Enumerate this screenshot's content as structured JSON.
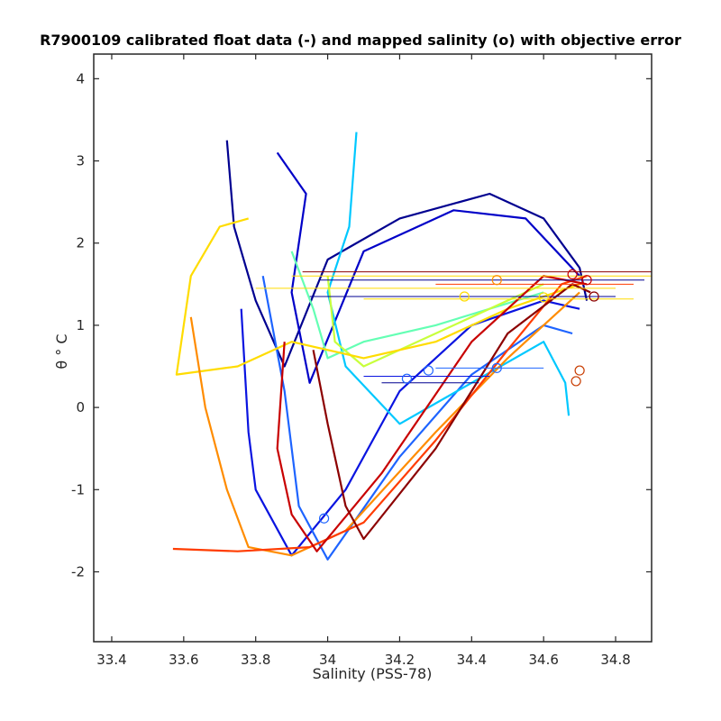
{
  "chart_data": {
    "type": "line",
    "title": "R7900109 calibrated float data (-) and mapped salinity (o) with objective error",
    "xlabel": "Salinity (PSS-78)",
    "ylabel": "θ ° C",
    "xlim": [
      33.35,
      34.9
    ],
    "ylim": [
      -2.85,
      4.3
    ],
    "xticks": [
      33.4,
      33.6,
      33.8,
      34.0,
      34.2,
      34.4,
      34.6,
      34.8
    ],
    "xtick_labels": [
      "33.4",
      "33.6",
      "33.8",
      "34",
      "34.2",
      "34.4",
      "34.6",
      "34.8"
    ],
    "yticks": [
      -2,
      -1,
      0,
      1,
      2,
      3,
      4
    ],
    "ytick_labels": [
      "-2",
      "-1",
      "0",
      "1",
      "2",
      "3",
      "4"
    ],
    "grid": false,
    "series": [
      {
        "color": "#000090",
        "values": [
          {
            "x": 33.72,
            "y": 3.25
          },
          {
            "x": 33.74,
            "y": 2.2
          },
          {
            "x": 33.8,
            "y": 1.3
          },
          {
            "x": 33.88,
            "y": 0.5
          },
          {
            "x": 34.0,
            "y": 1.8
          },
          {
            "x": 34.2,
            "y": 2.3
          },
          {
            "x": 34.45,
            "y": 2.6
          },
          {
            "x": 34.6,
            "y": 2.3
          },
          {
            "x": 34.7,
            "y": 1.7
          },
          {
            "x": 34.72,
            "y": 1.3
          }
        ]
      },
      {
        "color": "#0000c8",
        "values": [
          {
            "x": 33.86,
            "y": 3.1
          },
          {
            "x": 33.94,
            "y": 2.6
          },
          {
            "x": 33.9,
            "y": 1.4
          },
          {
            "x": 33.95,
            "y": 0.3
          },
          {
            "x": 34.1,
            "y": 1.9
          },
          {
            "x": 34.35,
            "y": 2.4
          },
          {
            "x": 34.55,
            "y": 2.3
          },
          {
            "x": 34.7,
            "y": 1.6
          }
        ]
      },
      {
        "color": "#0a14e0",
        "values": [
          {
            "x": 33.76,
            "y": 1.2
          },
          {
            "x": 33.78,
            "y": -0.3
          },
          {
            "x": 33.8,
            "y": -1.0
          },
          {
            "x": 33.9,
            "y": -1.8
          },
          {
            "x": 34.05,
            "y": -1.0
          },
          {
            "x": 34.2,
            "y": 0.2
          },
          {
            "x": 34.4,
            "y": 1.0
          },
          {
            "x": 34.6,
            "y": 1.3
          },
          {
            "x": 34.7,
            "y": 1.2
          }
        ]
      },
      {
        "color": "#1e64ff",
        "values": [
          {
            "x": 33.82,
            "y": 1.6
          },
          {
            "x": 33.88,
            "y": 0.2
          },
          {
            "x": 33.92,
            "y": -1.2
          },
          {
            "x": 34.0,
            "y": -1.85
          },
          {
            "x": 34.2,
            "y": -0.6
          },
          {
            "x": 34.4,
            "y": 0.4
          },
          {
            "x": 34.6,
            "y": 1.0
          },
          {
            "x": 34.68,
            "y": 0.9
          }
        ]
      },
      {
        "color": "#00c8ff",
        "values": [
          {
            "x": 34.08,
            "y": 3.35
          },
          {
            "x": 34.06,
            "y": 2.2
          },
          {
            "x": 34.0,
            "y": 1.4
          },
          {
            "x": 34.05,
            "y": 0.5
          },
          {
            "x": 34.2,
            "y": -0.2
          },
          {
            "x": 34.4,
            "y": 0.3
          },
          {
            "x": 34.6,
            "y": 0.8
          },
          {
            "x": 34.66,
            "y": 0.3
          },
          {
            "x": 34.67,
            "y": -0.1
          }
        ]
      },
      {
        "color": "#64ffb4",
        "values": [
          {
            "x": 33.9,
            "y": 1.9
          },
          {
            "x": 33.96,
            "y": 1.2
          },
          {
            "x": 34.0,
            "y": 0.6
          },
          {
            "x": 34.1,
            "y": 0.8
          },
          {
            "x": 34.3,
            "y": 1.0
          },
          {
            "x": 34.6,
            "y": 1.4
          }
        ]
      },
      {
        "color": "#c8ff3c",
        "values": [
          {
            "x": 34.0,
            "y": 1.6
          },
          {
            "x": 34.02,
            "y": 0.8
          },
          {
            "x": 34.1,
            "y": 0.5
          },
          {
            "x": 34.3,
            "y": 0.9
          },
          {
            "x": 34.6,
            "y": 1.5
          }
        ]
      },
      {
        "color": "#ffdc00",
        "values": [
          {
            "x": 33.78,
            "y": 2.3
          },
          {
            "x": 33.7,
            "y": 2.2
          },
          {
            "x": 33.62,
            "y": 1.6
          },
          {
            "x": 33.58,
            "y": 0.4
          },
          {
            "x": 33.75,
            "y": 0.5
          },
          {
            "x": 33.9,
            "y": 0.8
          },
          {
            "x": 34.1,
            "y": 0.6
          },
          {
            "x": 34.3,
            "y": 0.8
          },
          {
            "x": 34.5,
            "y": 1.2
          },
          {
            "x": 34.7,
            "y": 1.5
          }
        ]
      },
      {
        "color": "#ff8c00",
        "values": [
          {
            "x": 33.62,
            "y": 1.1
          },
          {
            "x": 33.66,
            "y": 0.0
          },
          {
            "x": 33.72,
            "y": -1.0
          },
          {
            "x": 33.78,
            "y": -1.7
          },
          {
            "x": 33.9,
            "y": -1.8
          },
          {
            "x": 34.05,
            "y": -1.5
          },
          {
            "x": 34.3,
            "y": -0.3
          },
          {
            "x": 34.5,
            "y": 0.6
          },
          {
            "x": 34.7,
            "y": 1.4
          }
        ]
      },
      {
        "color": "#ff3c00",
        "values": [
          {
            "x": 33.57,
            "y": -1.72
          },
          {
            "x": 33.75,
            "y": -1.75
          },
          {
            "x": 33.95,
            "y": -1.7
          },
          {
            "x": 34.1,
            "y": -1.4
          },
          {
            "x": 34.3,
            "y": -0.4
          },
          {
            "x": 34.5,
            "y": 0.7
          },
          {
            "x": 34.65,
            "y": 1.5
          },
          {
            "x": 34.72,
            "y": 1.6
          }
        ]
      },
      {
        "color": "#c80000",
        "values": [
          {
            "x": 33.88,
            "y": 0.8
          },
          {
            "x": 33.86,
            "y": -0.5
          },
          {
            "x": 33.9,
            "y": -1.3
          },
          {
            "x": 33.97,
            "y": -1.75
          },
          {
            "x": 34.15,
            "y": -0.8
          },
          {
            "x": 34.4,
            "y": 0.8
          },
          {
            "x": 34.6,
            "y": 1.6
          },
          {
            "x": 34.72,
            "y": 1.5
          }
        ]
      },
      {
        "color": "#8c0000",
        "values": [
          {
            "x": 33.96,
            "y": 0.7
          },
          {
            "x": 34.0,
            "y": -0.2
          },
          {
            "x": 34.05,
            "y": -1.2
          },
          {
            "x": 34.1,
            "y": -1.6
          },
          {
            "x": 34.3,
            "y": -0.5
          },
          {
            "x": 34.5,
            "y": 0.9
          },
          {
            "x": 34.68,
            "y": 1.5
          },
          {
            "x": 34.73,
            "y": 1.4
          }
        ]
      }
    ],
    "mapped_points": [
      {
        "x": 34.68,
        "y": 1.62,
        "color": "#c80000"
      },
      {
        "x": 34.72,
        "y": 1.55,
        "color": "#c80000"
      },
      {
        "x": 34.74,
        "y": 1.35,
        "color": "#8c0000"
      },
      {
        "x": 34.7,
        "y": 0.45,
        "color": "#c83c00"
      },
      {
        "x": 34.69,
        "y": 0.32,
        "color": "#c83c00"
      },
      {
        "x": 34.28,
        "y": 0.45,
        "color": "#1e64ff"
      },
      {
        "x": 34.22,
        "y": 0.35,
        "color": "#1e64ff"
      },
      {
        "x": 34.47,
        "y": 0.48,
        "color": "#1e64ff"
      },
      {
        "x": 34.47,
        "y": 1.55,
        "color": "#ff8c00"
      },
      {
        "x": 34.38,
        "y": 1.35,
        "color": "#ffdc00"
      },
      {
        "x": 34.6,
        "y": 1.34,
        "color": "#ffdc00"
      },
      {
        "x": 33.99,
        "y": -1.35,
        "color": "#1e64ff"
      }
    ],
    "error_bars": [
      {
        "y": 1.65,
        "xmin": 33.93,
        "xmax": 34.9,
        "color": "#8c0000"
      },
      {
        "y": 1.6,
        "xmin": 33.9,
        "xmax": 34.9,
        "color": "#ffdc00"
      },
      {
        "y": 1.55,
        "xmin": 33.98,
        "xmax": 34.88,
        "color": "#000090"
      },
      {
        "y": 1.5,
        "xmin": 34.3,
        "xmax": 34.85,
        "color": "#ff3c00"
      },
      {
        "y": 1.45,
        "xmin": 33.8,
        "xmax": 34.8,
        "color": "#ffdc00"
      },
      {
        "y": 1.35,
        "xmin": 33.95,
        "xmax": 34.8,
        "color": "#000090"
      },
      {
        "y": 1.32,
        "xmin": 34.1,
        "xmax": 34.85,
        "color": "#ffdc00"
      },
      {
        "y": 0.48,
        "xmin": 34.3,
        "xmax": 34.6,
        "color": "#1e64ff"
      },
      {
        "y": 0.38,
        "xmin": 34.1,
        "xmax": 34.45,
        "color": "#0a14e0"
      },
      {
        "y": 0.3,
        "xmin": 34.15,
        "xmax": 34.42,
        "color": "#000090"
      }
    ]
  }
}
